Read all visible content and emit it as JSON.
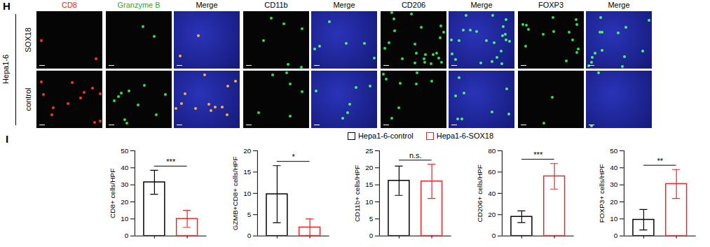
{
  "panel_h": {
    "letter": "H",
    "group": "Hepa1-6",
    "rows": [
      "SOX18",
      "control"
    ],
    "columns": [
      {
        "label": "CD8",
        "color": "#e8262b"
      },
      {
        "label": "Granzyme B",
        "color": "#1fa93a"
      },
      {
        "label": "Merge",
        "color": "#000000"
      },
      {
        "label": "CD11b",
        "color": "#000000"
      },
      {
        "label": "Merge",
        "color": "#000000"
      },
      {
        "label": "CD206",
        "color": "#000000"
      },
      {
        "label": "Merge",
        "color": "#000000"
      },
      {
        "label": "FOXP3",
        "color": "#000000"
      },
      {
        "label": "Merge",
        "color": "#000000"
      }
    ]
  },
  "panel_i": {
    "letter": "I"
  },
  "chart_data": [
    {
      "type": "bar",
      "y_label": "CD8+ cells/HPF",
      "ylim": [
        0,
        50
      ],
      "yticks": [
        0,
        10,
        20,
        30,
        40,
        50
      ],
      "tick_labels": "y",
      "legend": "top",
      "annotations": [
        "***"
      ],
      "series": [
        {
          "name": "Hepa1-6-control",
          "color": "#000000",
          "values": [
            31.5
          ],
          "errors": [
            7
          ]
        },
        {
          "name": "Hepa1-6-SOX18",
          "color": "#e8262b",
          "values": [
            10
          ],
          "errors": [
            5
          ]
        }
      ]
    },
    {
      "type": "bar",
      "y_label": "GZMB+CD8+ cells/HPF",
      "ylim": [
        0,
        20
      ],
      "yticks": [
        0,
        5,
        10,
        15,
        20
      ],
      "tick_labels": "y",
      "annotations": [
        "*"
      ],
      "series": [
        {
          "name": "Hepa1-6-control",
          "color": "#000000",
          "values": [
            9.8
          ],
          "errors": [
            6.7
          ]
        },
        {
          "name": "Hepa1-6-SOX18",
          "color": "#e8262b",
          "values": [
            2
          ],
          "errors": [
            2
          ]
        }
      ]
    },
    {
      "type": "bar",
      "y_label": "CD11b+ cells/HPF",
      "ylim": [
        0,
        25
      ],
      "yticks": [
        0,
        5,
        10,
        15,
        20,
        25
      ],
      "tick_labels": "y",
      "annotations": [
        "n.s."
      ],
      "series": [
        {
          "name": "Hepa1-6-control",
          "color": "#000000",
          "values": [
            16.2
          ],
          "errors": [
            4.3
          ]
        },
        {
          "name": "Hepa1-6-SOX18",
          "color": "#e8262b",
          "values": [
            16
          ],
          "errors": [
            5
          ]
        }
      ]
    },
    {
      "type": "bar",
      "y_label": "CD206+ cells/HPF",
      "ylim": [
        0,
        80
      ],
      "yticks": [
        0,
        20,
        40,
        60,
        80
      ],
      "tick_labels": "y",
      "annotations": [
        "***"
      ],
      "series": [
        {
          "name": "Hepa1-6-control",
          "color": "#000000",
          "values": [
            18
          ],
          "errors": [
            5.5
          ]
        },
        {
          "name": "Hepa1-6-SOX18",
          "color": "#e8262b",
          "values": [
            56
          ],
          "errors": [
            12
          ]
        }
      ]
    },
    {
      "type": "bar",
      "y_label": "FOXP3+ cells/HPF",
      "ylim": [
        0,
        50
      ],
      "yticks": [
        0,
        10,
        20,
        30,
        40,
        50
      ],
      "tick_labels": "y",
      "annotations": [
        "**"
      ],
      "series": [
        {
          "name": "Hepa1-6-control",
          "color": "#000000",
          "values": [
            9.5
          ],
          "errors": [
            6
          ]
        },
        {
          "name": "Hepa1-6-SOX18",
          "color": "#e8262b",
          "values": [
            30.5
          ],
          "errors": [
            8.5
          ]
        }
      ]
    }
  ]
}
